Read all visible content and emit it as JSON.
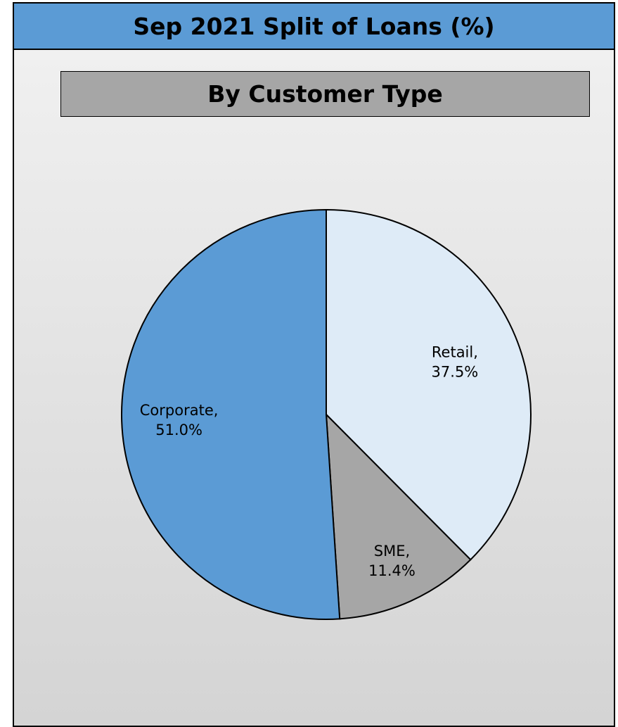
{
  "header": {
    "title": "Sep 2021 Split of Loans (%)"
  },
  "panel": {
    "subtitle": "By Customer Type"
  },
  "chart_data": {
    "type": "pie",
    "title": "Sep 2021 Split of Loans (%)",
    "subtitle": "By Customer Type",
    "categories": [
      "Retail",
      "SME",
      "Corporate"
    ],
    "values": [
      37.5,
      11.4,
      51.0
    ],
    "value_labels": [
      "37.5%",
      "11.4%",
      "51.0%"
    ],
    "colors": [
      "#deebf7",
      "#a6a6a6",
      "#5b9bd5"
    ],
    "start_angle_deg": 0,
    "direction": "clockwise",
    "legend": "none",
    "data_labels": "category-and-value"
  }
}
